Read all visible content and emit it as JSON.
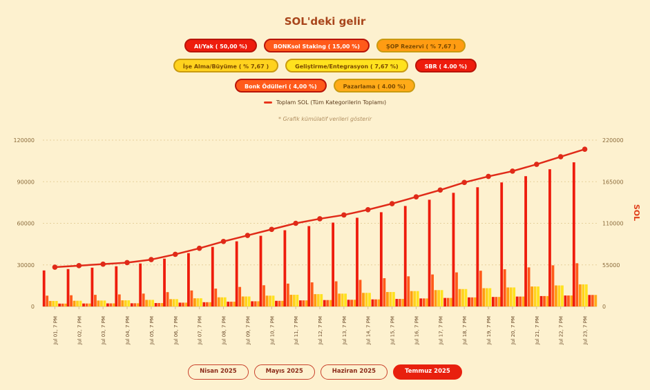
{
  "title": "SOL'deki gelir",
  "legend": [
    {
      "label": "AI/Yak ( 50,00 %)",
      "color": "#ee1c0c",
      "tone": "dark"
    },
    {
      "label": "BONKsol Staking ( 15,00 %)",
      "color": "#ff5a1a",
      "tone": "dark"
    },
    {
      "label": "ŞOP Rezervi ( % 7,67 )",
      "color": "#ff9c12",
      "tone": "light"
    },
    {
      "label": "İşe Alma/Büyüme ( % 7,67 )",
      "color": "#ffd21e",
      "tone": "light"
    },
    {
      "label": "Geliştirme/Entegrasyon ( 7,67 %)",
      "color": "#ffe21e",
      "tone": "light"
    },
    {
      "label": "SBR ( 4.00 %)",
      "color": "#ee1c0c",
      "tone": "dark"
    },
    {
      "label": "Bonk Ödülleri ( 4,00 %)",
      "color": "#ff5a1a",
      "tone": "dark"
    },
    {
      "label": "Pazarlama ( 4.00 %)",
      "color": "#ffab18",
      "tone": "light"
    }
  ],
  "total_label": "Toplam SOL (Tüm Kategorilerin Toplamı)",
  "note": "* Grafik kümülatif verileri gösterir",
  "months": [
    "Nisan 2025",
    "Mayıs 2025",
    "Haziran 2025",
    "Temmuz 2025"
  ],
  "active_month": "Temmuz 2025",
  "colors": {
    "background": "#fdf1cf",
    "total_line": "#e02a18",
    "axis_text": "#8a6a3a"
  },
  "chart_data": {
    "type": "bar",
    "categories": [
      "Jul 01, 7 PM",
      "Jul 02, 7 PM",
      "Jul 03, 7 PM",
      "Jul 04, 7 PM",
      "Jul 05, 7 PM",
      "Jul 06, 7 PM",
      "Jul 07, 7 PM",
      "Jul 08, 7 PM",
      "Jul 09, 7 PM",
      "Jul 10, 7 PM",
      "Jul 11, 7 PM",
      "Jul 12, 7 PM",
      "Jul 13, 7 PM",
      "Jul 14, 7 PM",
      "Jul 15, 7 PM",
      "Jul 16, 7 PM",
      "Jul 17, 7 PM",
      "Jul 18, 7 PM",
      "Jul 19, 7 PM",
      "Jul 20, 7 PM",
      "Jul 21, 7 PM",
      "Jul 22, 7 PM",
      "Jul 23, 7 PM"
    ],
    "series": [
      {
        "name": "AI/Yak ( 50,00 %)",
        "color": "#ee1c0c",
        "values": [
          26000,
          27000,
          28000,
          29000,
          31000,
          34500,
          38500,
          43000,
          47000,
          51000,
          55000,
          58000,
          60500,
          64000,
          68000,
          72500,
          77000,
          82000,
          86000,
          89500,
          94000,
          99000,
          104000
        ]
      },
      {
        "name": "BONKsol Staking ( 15,00 %)",
        "color": "#ff5a1a",
        "values": [
          7800,
          8100,
          8400,
          8700,
          9300,
          10350,
          11550,
          12900,
          14100,
          15300,
          16500,
          17400,
          18150,
          19200,
          20400,
          21750,
          23100,
          24600,
          25800,
          26850,
          28200,
          29700,
          31200
        ]
      },
      {
        "name": "ŞOP Rezervi ( % 7,67 )",
        "color": "#ff9c12",
        "values": [
          3990,
          4140,
          4300,
          4450,
          4760,
          5290,
          5900,
          6600,
          7210,
          7820,
          8440,
          8900,
          9280,
          9820,
          10430,
          11120,
          11810,
          12580,
          13190,
          13730,
          14420,
          15190,
          15950
        ]
      },
      {
        "name": "İşe Alma/Büyüme ( % 7,67 )",
        "color": "#ffd21e",
        "values": [
          3990,
          4140,
          4300,
          4450,
          4760,
          5290,
          5900,
          6600,
          7210,
          7820,
          8440,
          8900,
          9280,
          9820,
          10430,
          11120,
          11810,
          12580,
          13190,
          13730,
          14420,
          15190,
          15950
        ]
      },
      {
        "name": "Geliştirme/Entegrasyon ( 7,67 %)",
        "color": "#ffe21e",
        "values": [
          3990,
          4140,
          4300,
          4450,
          4760,
          5290,
          5900,
          6600,
          7210,
          7820,
          8440,
          8900,
          9280,
          9820,
          10430,
          11120,
          11810,
          12580,
          13190,
          13730,
          14420,
          15190,
          15950
        ]
      },
      {
        "name": "SBR ( 4.00 %)",
        "color": "#ee1c0c",
        "values": [
          2080,
          2160,
          2240,
          2320,
          2480,
          2760,
          3080,
          3440,
          3760,
          4080,
          4400,
          4640,
          4840,
          5120,
          5440,
          5800,
          6160,
          6560,
          6880,
          7160,
          7520,
          7920,
          8320
        ]
      },
      {
        "name": "Bonk Ödülleri ( 4,00 %)",
        "color": "#ff5a1a",
        "values": [
          2080,
          2160,
          2240,
          2320,
          2480,
          2760,
          3080,
          3440,
          3760,
          4080,
          4400,
          4640,
          4840,
          5120,
          5440,
          5800,
          6160,
          6560,
          6880,
          7160,
          7520,
          7920,
          8320
        ]
      },
      {
        "name": "Pazarlama ( 4.00 %)",
        "color": "#ffab18",
        "values": [
          2080,
          2160,
          2240,
          2320,
          2480,
          2760,
          3080,
          3440,
          3760,
          4080,
          4400,
          4640,
          4840,
          5120,
          5440,
          5800,
          6160,
          6560,
          6880,
          7160,
          7520,
          7920,
          8320
        ]
      }
    ],
    "total": {
      "name": "Toplam SOL (Tüm Kategorilerin Toplamı)",
      "axis": "right",
      "values": [
        52000,
        54000,
        56000,
        58000,
        62000,
        69000,
        77000,
        86000,
        94000,
        102000,
        110000,
        116000,
        121000,
        128000,
        136000,
        145000,
        154000,
        164000,
        172000,
        179000,
        188000,
        198000,
        208000
      ]
    },
    "y_left": {
      "min": 0,
      "max": 120000,
      "ticks": [
        0,
        30000,
        60000,
        90000,
        120000
      ]
    },
    "y_right": {
      "min": 0,
      "max": 220000,
      "ticks": [
        0,
        55000,
        110000,
        165000,
        220000
      ],
      "label": "SOL"
    },
    "grid": "horizontal dotted"
  }
}
